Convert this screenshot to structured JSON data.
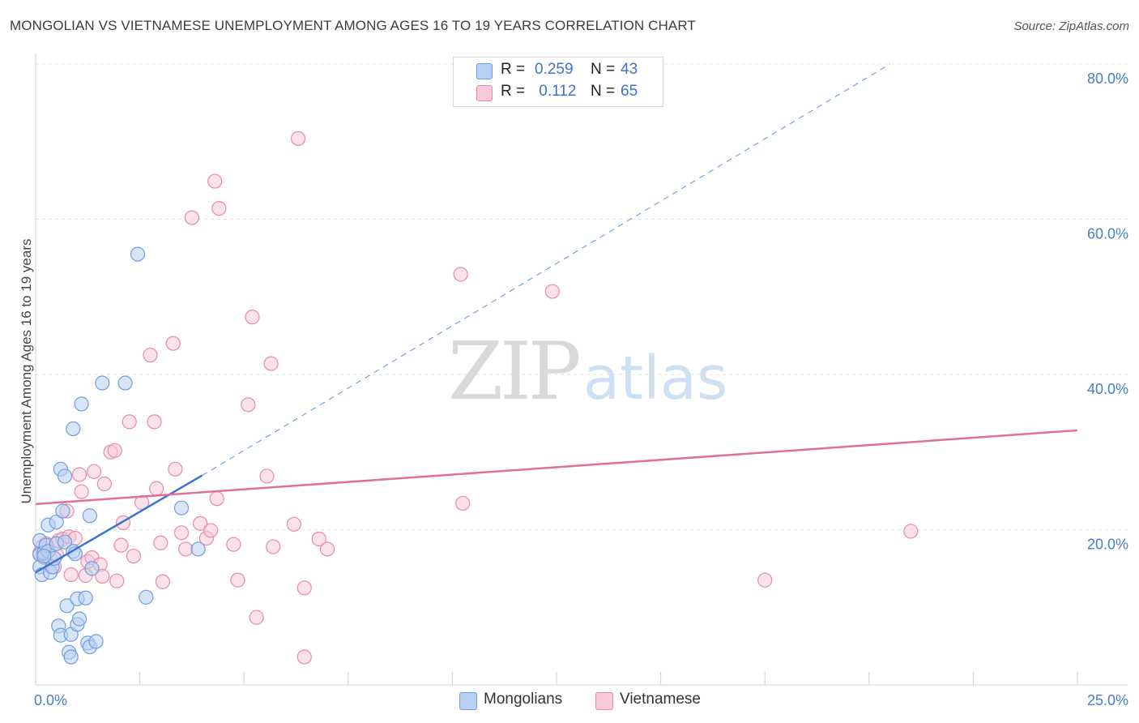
{
  "title": "MONGOLIAN VS VIETNAMESE UNEMPLOYMENT AMONG AGES 16 TO 19 YEARS CORRELATION CHART",
  "source": "Source: ZipAtlas.com",
  "watermark": {
    "zip": "ZIP",
    "atlas": "atlas"
  },
  "legend": {
    "rows": [
      {
        "r_label": "R =",
        "r_value": "0.259",
        "n_label": "N =",
        "n_value": "43"
      },
      {
        "r_label": "R =",
        "r_value": " 0.112",
        "n_label": "N =",
        "n_value": "65"
      }
    ]
  },
  "colors": {
    "mongolians_fill": "#b8d0f3",
    "mongolians_stroke": "#6f9de0",
    "mongolians_line": "#3a75d0",
    "vietnamese_fill": "#f8c9d8",
    "vietnamese_stroke": "#e98aa8",
    "vietnamese_line": "#e0709a",
    "tick_text": "#4a7cc9",
    "grid": "#e2e2e2"
  },
  "chart_data": {
    "type": "scatter",
    "xlabel": "",
    "ylabel": "Unemployment Among Ages 16 to 19 years",
    "xlim": [
      0,
      25
    ],
    "ylim": [
      0,
      80
    ],
    "x_tick_labels": [
      "0.0%",
      "25.0%"
    ],
    "y_ticks": [
      20,
      40,
      60,
      80
    ],
    "y_tick_labels": [
      "20.0%",
      "40.0%",
      "60.0%",
      "80.0%"
    ],
    "grid": true,
    "legend_position": "top-center",
    "series": [
      {
        "name": "Mongolians",
        "points": [
          [
            0.1,
            18.6
          ],
          [
            0.1,
            16.8
          ],
          [
            0.1,
            15.2
          ],
          [
            0.15,
            14.2
          ],
          [
            0.2,
            17.0
          ],
          [
            0.25,
            18.0
          ],
          [
            0.3,
            17.2
          ],
          [
            0.3,
            20.6
          ],
          [
            0.35,
            14.5
          ],
          [
            0.4,
            15.2
          ],
          [
            0.45,
            16.3
          ],
          [
            0.5,
            21.0
          ],
          [
            0.5,
            18.2
          ],
          [
            0.55,
            7.6
          ],
          [
            0.6,
            6.4
          ],
          [
            0.6,
            27.8
          ],
          [
            0.65,
            22.4
          ],
          [
            0.7,
            26.9
          ],
          [
            0.7,
            18.4
          ],
          [
            0.75,
            10.2
          ],
          [
            0.8,
            4.2
          ],
          [
            0.85,
            3.6
          ],
          [
            0.85,
            6.5
          ],
          [
            0.9,
            33.0
          ],
          [
            0.9,
            17.2
          ],
          [
            0.95,
            16.9
          ],
          [
            1.0,
            7.8
          ],
          [
            1.0,
            11.1
          ],
          [
            1.05,
            8.5
          ],
          [
            1.1,
            36.2
          ],
          [
            1.2,
            11.2
          ],
          [
            1.25,
            5.4
          ],
          [
            1.3,
            4.9
          ],
          [
            1.3,
            21.8
          ],
          [
            1.35,
            15.0
          ],
          [
            1.45,
            5.6
          ],
          [
            1.6,
            38.9
          ],
          [
            2.15,
            38.9
          ],
          [
            2.45,
            55.5
          ],
          [
            2.65,
            11.3
          ],
          [
            3.5,
            22.8
          ],
          [
            3.9,
            17.5
          ],
          [
            0.2,
            16.6
          ]
        ]
      },
      {
        "name": "Vietnamese",
        "points": [
          [
            0.1,
            17.0
          ],
          [
            0.15,
            17.8
          ],
          [
            0.2,
            16.4
          ],
          [
            0.25,
            18.2
          ],
          [
            0.35,
            16.2
          ],
          [
            0.45,
            15.2
          ],
          [
            0.5,
            16.8
          ],
          [
            0.55,
            18.6
          ],
          [
            0.65,
            18.8
          ],
          [
            0.75,
            22.4
          ],
          [
            0.8,
            19.1
          ],
          [
            0.85,
            14.2
          ],
          [
            0.95,
            18.9
          ],
          [
            1.05,
            27.1
          ],
          [
            1.1,
            24.9
          ],
          [
            1.2,
            14.1
          ],
          [
            1.25,
            15.9
          ],
          [
            1.35,
            16.4
          ],
          [
            1.4,
            27.5
          ],
          [
            1.55,
            15.5
          ],
          [
            1.6,
            14.0
          ],
          [
            1.65,
            25.9
          ],
          [
            1.8,
            30.0
          ],
          [
            1.9,
            30.2
          ],
          [
            1.95,
            13.4
          ],
          [
            2.05,
            18.0
          ],
          [
            2.1,
            20.9
          ],
          [
            2.25,
            33.9
          ],
          [
            2.35,
            16.6
          ],
          [
            2.55,
            23.5
          ],
          [
            2.75,
            42.5
          ],
          [
            2.85,
            33.9
          ],
          [
            2.9,
            25.3
          ],
          [
            3.0,
            18.3
          ],
          [
            3.05,
            13.3
          ],
          [
            3.3,
            44.0
          ],
          [
            3.35,
            27.8
          ],
          [
            3.5,
            19.6
          ],
          [
            3.6,
            17.5
          ],
          [
            3.75,
            60.2
          ],
          [
            3.95,
            20.8
          ],
          [
            4.1,
            18.9
          ],
          [
            4.2,
            19.9
          ],
          [
            4.3,
            64.9
          ],
          [
            4.4,
            61.4
          ],
          [
            4.35,
            24.0
          ],
          [
            4.75,
            18.1
          ],
          [
            4.85,
            13.5
          ],
          [
            5.1,
            36.1
          ],
          [
            5.2,
            47.4
          ],
          [
            5.3,
            8.7
          ],
          [
            5.55,
            26.9
          ],
          [
            5.65,
            41.4
          ],
          [
            5.7,
            17.8
          ],
          [
            6.2,
            20.7
          ],
          [
            6.3,
            70.4
          ],
          [
            6.45,
            12.5
          ],
          [
            6.45,
            3.6
          ],
          [
            6.8,
            18.8
          ],
          [
            7.0,
            17.5
          ],
          [
            10.25,
            23.4
          ],
          [
            10.2,
            52.9
          ],
          [
            12.4,
            50.7
          ],
          [
            17.5,
            13.5
          ],
          [
            21.0,
            19.8
          ]
        ]
      }
    ],
    "trendlines": [
      {
        "series": "Mongolians",
        "solid": [
          [
            0.0,
            14.5
          ],
          [
            4.0,
            27.0
          ]
        ],
        "dashed": [
          [
            4.0,
            27.0
          ],
          [
            20.5,
            80.0
          ]
        ]
      },
      {
        "series": "Vietnamese",
        "solid": [
          [
            0.0,
            23.3
          ],
          [
            25.0,
            32.8
          ]
        ]
      }
    ]
  },
  "bottom_legend": [
    "Mongolians",
    "Vietnamese"
  ]
}
